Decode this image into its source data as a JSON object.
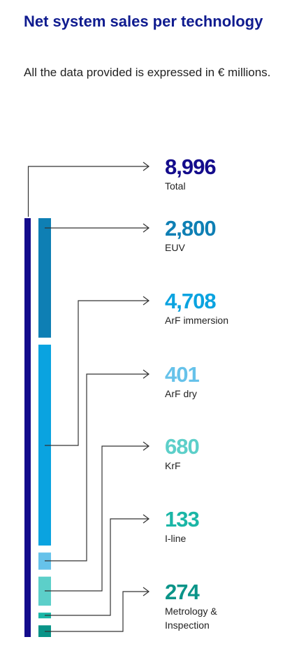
{
  "title": "Net system sales per technology",
  "subtitle": "All the data provided is expressed in € millions.",
  "chart_data": {
    "type": "bar",
    "total": {
      "value": "8,996",
      "label": "Total",
      "number": 8996,
      "color": "#140c8c"
    },
    "series": [
      {
        "name": "EUV",
        "value": "2,800",
        "number": 2800,
        "color": "#0e7fb4",
        "label_lines": [
          "EUV"
        ]
      },
      {
        "name": "ArF immersion",
        "value": "4,708",
        "number": 4708,
        "color": "#0aa3e0",
        "label_lines": [
          "ArF immersion"
        ]
      },
      {
        "name": "ArF dry",
        "value": "401",
        "number": 401,
        "color": "#66c2ea",
        "label_lines": [
          "ArF dry"
        ]
      },
      {
        "name": "KrF",
        "value": "680",
        "number": 680,
        "color": "#5ccfc9",
        "label_lines": [
          "KrF"
        ]
      },
      {
        "name": "I-line",
        "value": "133",
        "number": 133,
        "color": "#1ab6a6",
        "label_lines": [
          "I-line"
        ]
      },
      {
        "name": "Metrology & Inspection",
        "value": "274",
        "number": 274,
        "color": "#0a9488",
        "label_lines": [
          "Metrology &",
          "Inspection"
        ]
      }
    ]
  }
}
